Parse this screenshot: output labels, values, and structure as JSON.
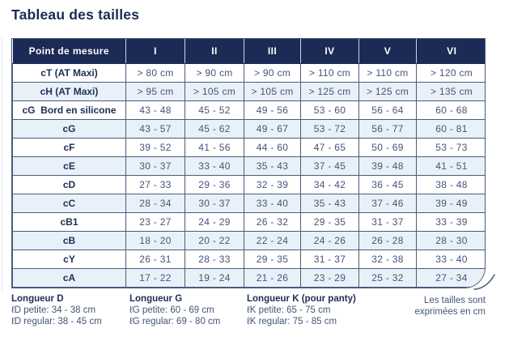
{
  "page": {
    "title": "Tableau des tailles"
  },
  "colors": {
    "navy": "#1b2b55",
    "border": "#4b5c7e",
    "rowalt": "#e9f1f8",
    "label": "#1e2d56",
    "value": "#44557a",
    "headsep": "#c9d4e8"
  },
  "table": {
    "header": {
      "measure_label": "Point de mesure",
      "sizes": [
        "I",
        "II",
        "III",
        "IV",
        "V",
        "VI"
      ]
    },
    "rows": [
      {
        "label": "cT (AT Maxi)",
        "values": [
          "> 80 cm",
          "> 90 cm",
          "> 90 cm",
          "> 110 cm",
          "> 110 cm",
          "> 120 cm"
        ]
      },
      {
        "label": "cH (AT Maxi)",
        "values": [
          "> 95 cm",
          "> 105 cm",
          "> 105 cm",
          "> 125 cm",
          "> 125 cm",
          "> 135 cm"
        ]
      },
      {
        "label": "cG  Bord en silicone",
        "values": [
          "43 - 48",
          "45 - 52",
          "49 - 56",
          "53 - 60",
          "56 - 64",
          "60 - 68"
        ]
      },
      {
        "label": "cG",
        "values": [
          "43 - 57",
          "45 - 62",
          "49 - 67",
          "53 - 72",
          "56 - 77",
          "60 - 81"
        ]
      },
      {
        "label": "cF",
        "values": [
          "39 - 52",
          "41 - 56",
          "44 - 60",
          "47 - 65",
          "50 - 69",
          "53 - 73"
        ]
      },
      {
        "label": "cE",
        "values": [
          "30 - 37",
          "33 - 40",
          "35 - 43",
          "37 - 45",
          "39 - 48",
          "41 - 51"
        ]
      },
      {
        "label": "cD",
        "values": [
          "27 - 33",
          "29 - 36",
          "32 - 39",
          "34 - 42",
          "36 - 45",
          "38 - 48"
        ]
      },
      {
        "label": "cC",
        "values": [
          "28 - 34",
          "30 - 37",
          "33 - 40",
          "35 - 43",
          "37 - 46",
          "39 - 49"
        ]
      },
      {
        "label": "cB1",
        "values": [
          "23 - 27",
          "24 - 29",
          "26 - 32",
          "29 - 35",
          "31 - 37",
          "33 - 39"
        ]
      },
      {
        "label": "cB",
        "values": [
          "18 - 20",
          "20 - 22",
          "22 - 24",
          "24 - 26",
          "26 - 28",
          "28 - 30"
        ]
      },
      {
        "label": "cY",
        "values": [
          "26 - 31",
          "28 - 33",
          "29 - 35",
          "31 - 37",
          "32 - 38",
          "33 - 40"
        ]
      },
      {
        "label": "cA",
        "values": [
          "17 - 22",
          "19 - 24",
          "21 - 26",
          "23 - 29",
          "25 - 32",
          "27 - 34"
        ]
      }
    ]
  },
  "footnotes": [
    {
      "title": "Longueur D",
      "lines": [
        "ℓD petite: 34 - 38 cm",
        "ℓD regular: 38 - 45 cm"
      ]
    },
    {
      "title": "Longueur G",
      "lines": [
        "ℓG petite: 60 - 69 cm",
        "ℓG regular: 69 - 80 cm"
      ]
    },
    {
      "title": "Longueur K (pour panty)",
      "lines": [
        "ℓK petite: 65 - 75 cm",
        "ℓK regular: 75 - 85 cm"
      ]
    }
  ],
  "unit_note": {
    "line1": "Les tailles sont",
    "line2": "exprimées en cm"
  }
}
